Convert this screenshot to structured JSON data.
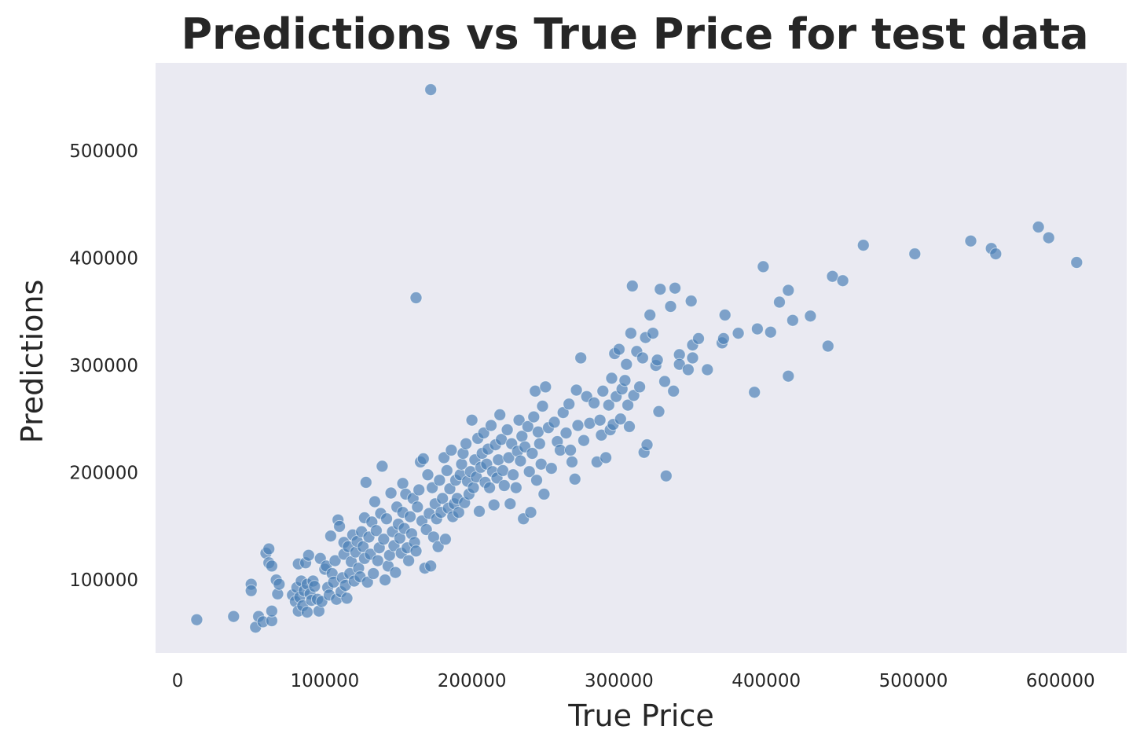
{
  "chart_data": {
    "type": "scatter",
    "title": "Predictions vs True Price for test data",
    "xlabel": "True Price",
    "ylabel": "Predictions",
    "xlim": [
      -15000,
      645000
    ],
    "ylim": [
      32000,
      582000
    ],
    "xticks": [
      0,
      100000,
      200000,
      300000,
      400000,
      500000,
      600000
    ],
    "yticks": [
      100000,
      200000,
      300000,
      400000,
      500000
    ],
    "grid": false,
    "colors": {
      "background": "#eaeaf2",
      "point": "#4a7fb5"
    },
    "series": [
      {
        "points": [
          [
            13000,
            63000
          ],
          [
            38000,
            66000
          ],
          [
            50000,
            96000
          ],
          [
            50000,
            90000
          ],
          [
            53000,
            56000
          ],
          [
            55000,
            66000
          ],
          [
            58000,
            61000
          ],
          [
            60000,
            125000
          ],
          [
            62000,
            129000
          ],
          [
            62000,
            116000
          ],
          [
            64000,
            62000
          ],
          [
            64000,
            71000
          ],
          [
            64000,
            113000
          ],
          [
            67000,
            100000
          ],
          [
            68000,
            87000
          ],
          [
            69000,
            96000
          ],
          [
            78000,
            86000
          ],
          [
            80000,
            80000
          ],
          [
            81000,
            93000
          ],
          [
            82000,
            115000
          ],
          [
            82000,
            71000
          ],
          [
            83000,
            84000
          ],
          [
            84000,
            99000
          ],
          [
            85000,
            76000
          ],
          [
            86000,
            90000
          ],
          [
            87000,
            116000
          ],
          [
            88000,
            96000
          ],
          [
            88000,
            70000
          ],
          [
            89000,
            123000
          ],
          [
            90000,
            87000
          ],
          [
            91000,
            81000
          ],
          [
            92000,
            99000
          ],
          [
            93000,
            94000
          ],
          [
            95000,
            82000
          ],
          [
            96000,
            71000
          ],
          [
            97000,
            120000
          ],
          [
            98000,
            80000
          ],
          [
            100000,
            110000
          ],
          [
            101000,
            113000
          ],
          [
            102000,
            93000
          ],
          [
            103000,
            86000
          ],
          [
            104000,
            141000
          ],
          [
            105000,
            106000
          ],
          [
            106000,
            98000
          ],
          [
            107000,
            118000
          ],
          [
            108000,
            82000
          ],
          [
            109000,
            156000
          ],
          [
            110000,
            150000
          ],
          [
            111000,
            89000
          ],
          [
            112000,
            102000
          ],
          [
            113000,
            135000
          ],
          [
            113000,
            124000
          ],
          [
            114000,
            95000
          ],
          [
            115000,
            83000
          ],
          [
            116000,
            131000
          ],
          [
            117000,
            106000
          ],
          [
            118000,
            117000
          ],
          [
            119000,
            142000
          ],
          [
            120000,
            99000
          ],
          [
            121000,
            126000
          ],
          [
            122000,
            136000
          ],
          [
            123000,
            111000
          ],
          [
            124000,
            103000
          ],
          [
            125000,
            145000
          ],
          [
            126000,
            131000
          ],
          [
            127000,
            158000
          ],
          [
            127000,
            120000
          ],
          [
            128000,
            191000
          ],
          [
            129000,
            98000
          ],
          [
            130000,
            140000
          ],
          [
            131000,
            124000
          ],
          [
            132000,
            154000
          ],
          [
            133000,
            106000
          ],
          [
            134000,
            173000
          ],
          [
            135000,
            146000
          ],
          [
            136000,
            118000
          ],
          [
            137000,
            130000
          ],
          [
            138000,
            162000
          ],
          [
            139000,
            206000
          ],
          [
            140000,
            138000
          ],
          [
            141000,
            100000
          ],
          [
            142000,
            157000
          ],
          [
            143000,
            113000
          ],
          [
            144000,
            123000
          ],
          [
            145000,
            181000
          ],
          [
            146000,
            145000
          ],
          [
            147000,
            132000
          ],
          [
            148000,
            107000
          ],
          [
            149000,
            168000
          ],
          [
            150000,
            152000
          ],
          [
            151000,
            139000
          ],
          [
            152000,
            125000
          ],
          [
            153000,
            190000
          ],
          [
            153000,
            163000
          ],
          [
            154000,
            148000
          ],
          [
            155000,
            180000
          ],
          [
            156000,
            130000
          ],
          [
            157000,
            118000
          ],
          [
            158000,
            159000
          ],
          [
            159000,
            143000
          ],
          [
            160000,
            176000
          ],
          [
            161000,
            135000
          ],
          [
            162000,
            127000
          ],
          [
            162000,
            363000
          ],
          [
            163000,
            168000
          ],
          [
            164000,
            184000
          ],
          [
            165000,
            210000
          ],
          [
            166000,
            155000
          ],
          [
            167000,
            213000
          ],
          [
            168000,
            111000
          ],
          [
            169000,
            147000
          ],
          [
            170000,
            198000
          ],
          [
            171000,
            162000
          ],
          [
            172000,
            113000
          ],
          [
            172000,
            557000
          ],
          [
            173000,
            186000
          ],
          [
            174000,
            140000
          ],
          [
            175000,
            171000
          ],
          [
            176000,
            157000
          ],
          [
            177000,
            131000
          ],
          [
            178000,
            193000
          ],
          [
            179000,
            163000
          ],
          [
            180000,
            176000
          ],
          [
            181000,
            214000
          ],
          [
            182000,
            138000
          ],
          [
            183000,
            202000
          ],
          [
            184000,
            167000
          ],
          [
            185000,
            185000
          ],
          [
            186000,
            221000
          ],
          [
            187000,
            159000
          ],
          [
            188000,
            171000
          ],
          [
            189000,
            193000
          ],
          [
            190000,
            176000
          ],
          [
            191000,
            163000
          ],
          [
            192000,
            198000
          ],
          [
            193000,
            208000
          ],
          [
            194000,
            218000
          ],
          [
            195000,
            172000
          ],
          [
            196000,
            227000
          ],
          [
            197000,
            192000
          ],
          [
            198000,
            180000
          ],
          [
            199000,
            201000
          ],
          [
            200000,
            249000
          ],
          [
            201000,
            186000
          ],
          [
            202000,
            212000
          ],
          [
            203000,
            196000
          ],
          [
            204000,
            232000
          ],
          [
            205000,
            164000
          ],
          [
            206000,
            205000
          ],
          [
            207000,
            218000
          ],
          [
            208000,
            237000
          ],
          [
            209000,
            191000
          ],
          [
            210000,
            208000
          ],
          [
            211000,
            222000
          ],
          [
            212000,
            186000
          ],
          [
            213000,
            244000
          ],
          [
            214000,
            201000
          ],
          [
            215000,
            170000
          ],
          [
            216000,
            226000
          ],
          [
            217000,
            195000
          ],
          [
            218000,
            212000
          ],
          [
            219000,
            254000
          ],
          [
            220000,
            231000
          ],
          [
            221000,
            202000
          ],
          [
            222000,
            188000
          ],
          [
            224000,
            240000
          ],
          [
            225000,
            214000
          ],
          [
            226000,
            171000
          ],
          [
            227000,
            227000
          ],
          [
            228000,
            198000
          ],
          [
            230000,
            186000
          ],
          [
            231000,
            220000
          ],
          [
            232000,
            249000
          ],
          [
            233000,
            211000
          ],
          [
            234000,
            234000
          ],
          [
            235000,
            157000
          ],
          [
            236000,
            224000
          ],
          [
            238000,
            243000
          ],
          [
            239000,
            201000
          ],
          [
            240000,
            163000
          ],
          [
            241000,
            218000
          ],
          [
            242000,
            252000
          ],
          [
            243000,
            276000
          ],
          [
            244000,
            193000
          ],
          [
            245000,
            238000
          ],
          [
            246000,
            227000
          ],
          [
            247000,
            208000
          ],
          [
            248000,
            262000
          ],
          [
            249000,
            180000
          ],
          [
            250000,
            280000
          ],
          [
            252000,
            242000
          ],
          [
            254000,
            204000
          ],
          [
            256000,
            247000
          ],
          [
            258000,
            229000
          ],
          [
            260000,
            221000
          ],
          [
            262000,
            256000
          ],
          [
            264000,
            237000
          ],
          [
            266000,
            264000
          ],
          [
            267000,
            221000
          ],
          [
            268000,
            210000
          ],
          [
            270000,
            194000
          ],
          [
            271000,
            277000
          ],
          [
            272000,
            244000
          ],
          [
            274000,
            307000
          ],
          [
            276000,
            230000
          ],
          [
            278000,
            271000
          ],
          [
            280000,
            246000
          ],
          [
            283000,
            265000
          ],
          [
            285000,
            210000
          ],
          [
            287000,
            249000
          ],
          [
            288000,
            235000
          ],
          [
            289000,
            276000
          ],
          [
            291000,
            214000
          ],
          [
            293000,
            263000
          ],
          [
            294000,
            240000
          ],
          [
            295000,
            288000
          ],
          [
            296000,
            245000
          ],
          [
            297000,
            311000
          ],
          [
            298000,
            271000
          ],
          [
            300000,
            315000
          ],
          [
            301000,
            250000
          ],
          [
            302000,
            278000
          ],
          [
            304000,
            286000
          ],
          [
            305000,
            301000
          ],
          [
            306000,
            263000
          ],
          [
            307000,
            243000
          ],
          [
            308000,
            330000
          ],
          [
            309000,
            374000
          ],
          [
            310000,
            272000
          ],
          [
            312000,
            313000
          ],
          [
            314000,
            280000
          ],
          [
            316000,
            307000
          ],
          [
            317000,
            219000
          ],
          [
            318000,
            326000
          ],
          [
            319000,
            226000
          ],
          [
            321000,
            347000
          ],
          [
            323000,
            330000
          ],
          [
            325000,
            300000
          ],
          [
            326000,
            305000
          ],
          [
            327000,
            257000
          ],
          [
            328000,
            371000
          ],
          [
            331000,
            285000
          ],
          [
            332000,
            197000
          ],
          [
            335000,
            355000
          ],
          [
            337000,
            276000
          ],
          [
            338000,
            372000
          ],
          [
            341000,
            310000
          ],
          [
            341000,
            301000
          ],
          [
            347000,
            296000
          ],
          [
            349000,
            360000
          ],
          [
            350000,
            307000
          ],
          [
            350000,
            319000
          ],
          [
            354000,
            325000
          ],
          [
            360000,
            296000
          ],
          [
            370000,
            321000
          ],
          [
            371000,
            325000
          ],
          [
            372000,
            347000
          ],
          [
            381000,
            330000
          ],
          [
            392000,
            275000
          ],
          [
            394000,
            334000
          ],
          [
            398000,
            392000
          ],
          [
            403000,
            331000
          ],
          [
            409000,
            359000
          ],
          [
            415000,
            370000
          ],
          [
            415000,
            290000
          ],
          [
            418000,
            342000
          ],
          [
            430000,
            346000
          ],
          [
            442000,
            318000
          ],
          [
            445000,
            383000
          ],
          [
            452000,
            379000
          ],
          [
            466000,
            412000
          ],
          [
            501000,
            404000
          ],
          [
            539000,
            416000
          ],
          [
            553000,
            409000
          ],
          [
            556000,
            404000
          ],
          [
            585000,
            429000
          ],
          [
            592000,
            419000
          ],
          [
            611000,
            396000
          ]
        ]
      }
    ]
  }
}
